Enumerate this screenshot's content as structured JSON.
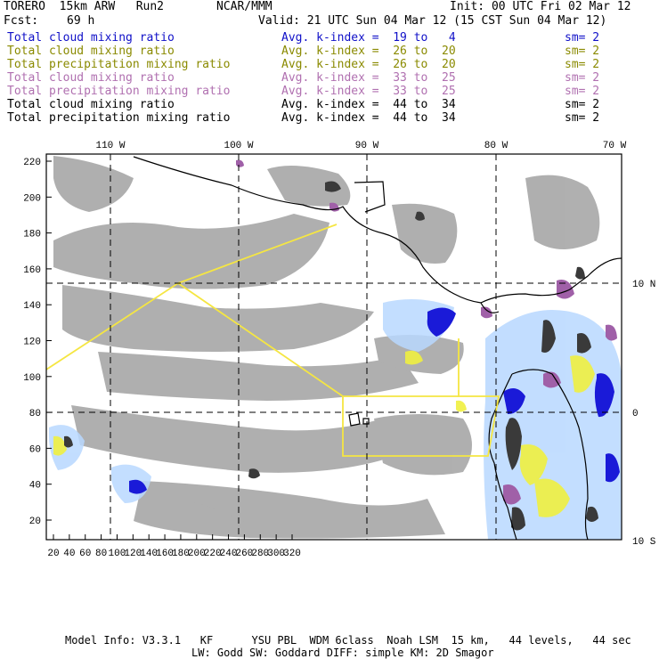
{
  "header": {
    "model": "TORERO  15km ARW   Run2",
    "org": "NCAR/MMM",
    "init": "Init: 00 UTC Fri 02 Mar 12",
    "fcst_label": "Fcst:",
    "fcst_value": "69 h",
    "valid": "Valid: 21 UTC Sun 04 Mar 12 (15 CST Sun 04 Mar 12)"
  },
  "fields": [
    {
      "name": "Total cloud mixing ratio",
      "kindex": "Avg. k-index =  19 to   4",
      "sm": "sm= 2",
      "color": "#1010c8"
    },
    {
      "name": "Total cloud mixing ratio",
      "kindex": "Avg. k-index =  26 to  20",
      "sm": "sm= 2",
      "color": "#8a8a00"
    },
    {
      "name": "Total precipitation mixing ratio",
      "kindex": "Avg. k-index =  26 to  20",
      "sm": "sm= 2",
      "color": "#8a8a00"
    },
    {
      "name": "Total cloud mixing ratio",
      "kindex": "Avg. k-index =  33 to  25",
      "sm": "sm= 2",
      "color": "#b070b0"
    },
    {
      "name": "Total precipitation mixing ratio",
      "kindex": "Avg. k-index =  33 to  25",
      "sm": "sm= 2",
      "color": "#b070b0"
    },
    {
      "name": "Total cloud mixing ratio",
      "kindex": "Avg. k-index =  44 to  34",
      "sm": "sm= 2",
      "color": "#000000"
    },
    {
      "name": "Total precipitation mixing ratio",
      "kindex": "Avg. k-index =  44 to  34",
      "sm": "sm= 2",
      "color": "#000000"
    }
  ],
  "map": {
    "lon_labels": [
      "110 W",
      "100 W",
      "90 W",
      "80 W",
      "70 W"
    ],
    "lat_labels": [
      "10 N",
      "0",
      "10 S"
    ],
    "x_ticks": [
      "20",
      "40",
      "60",
      "80",
      "100",
      "120",
      "140",
      "160",
      "180",
      "200",
      "220",
      "240",
      "260",
      "280",
      "300",
      "320"
    ],
    "y_ticks": [
      "20",
      "40",
      "60",
      "80",
      "100",
      "120",
      "140",
      "160",
      "180",
      "200",
      "220"
    ],
    "colors": {
      "cloud_gray": "#a9a9a9",
      "dark": "#3a3a3a",
      "blue": "#1a1ad8",
      "lightblue": "#b8d8ff",
      "yellow": "#f0f040",
      "purple": "#a060a8",
      "boundary": "#f5e642"
    }
  },
  "footer": {
    "line1": "Model Info: V3.3.1   KF      YSU PBL  WDM 6class  Noah LSM  15 km,   44 levels,   44 sec",
    "line2": "LW: Godd SW: Goddard DIFF: simple KM: 2D Smagor"
  }
}
